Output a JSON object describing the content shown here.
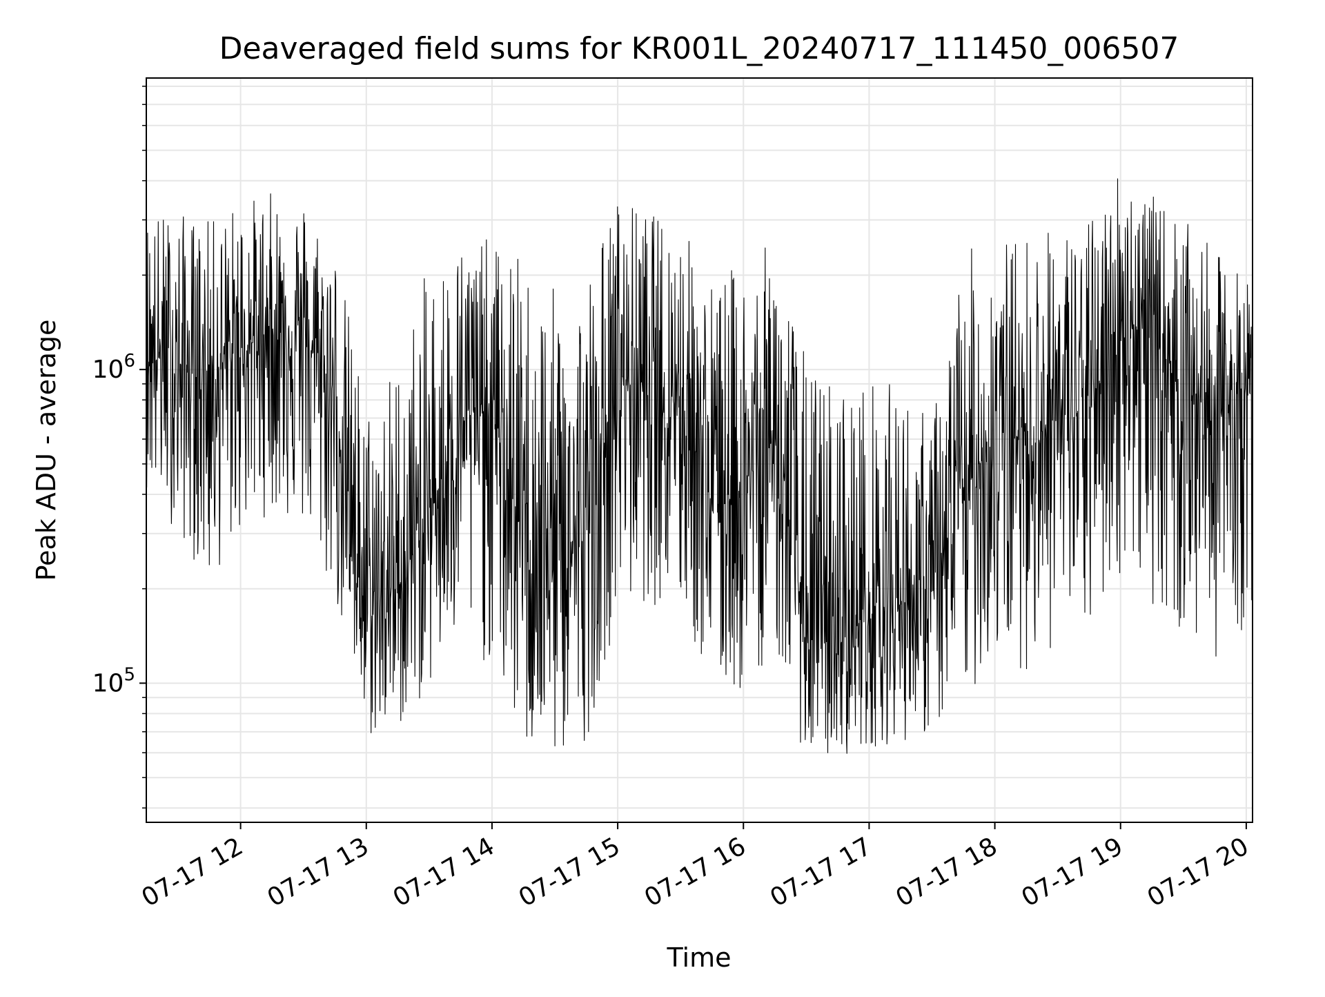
{
  "chart_data": {
    "type": "line",
    "title": "Deaveraged field sums for KR001L_20240717_111450_006507",
    "xlabel": "Time",
    "ylabel": "Peak ADU - average",
    "yscale": "log",
    "ylim": [
      36000,
      8500000
    ],
    "xlim": [
      "2024-07-17T11:15",
      "2024-07-17T20:03"
    ],
    "grid": true,
    "line_color": "#000000",
    "grid_color": "#e6e6e6",
    "x_ticks": [
      {
        "at": "2024-07-17T12:00",
        "label": "07-17 12"
      },
      {
        "at": "2024-07-17T13:00",
        "label": "07-17 13"
      },
      {
        "at": "2024-07-17T14:00",
        "label": "07-17 14"
      },
      {
        "at": "2024-07-17T15:00",
        "label": "07-17 15"
      },
      {
        "at": "2024-07-17T16:00",
        "label": "07-17 16"
      },
      {
        "at": "2024-07-17T17:00",
        "label": "07-17 17"
      },
      {
        "at": "2024-07-17T18:00",
        "label": "07-17 18"
      },
      {
        "at": "2024-07-17T19:00",
        "label": "07-17 19"
      },
      {
        "at": "2024-07-17T20:00",
        "label": "07-17 20"
      }
    ],
    "y_ticks": [
      {
        "value": 100000,
        "base": "10",
        "exp": "5"
      },
      {
        "value": 1000000,
        "base": "10",
        "exp": "6"
      }
    ],
    "series": [
      {
        "x": [
          "2024-07-17T11:15",
          "2024-07-17T11:30",
          "2024-07-17T11:45",
          "2024-07-17T12:00",
          "2024-07-17T12:15",
          "2024-07-17T12:30",
          "2024-07-17T12:45",
          "2024-07-17T13:00",
          "2024-07-17T13:15",
          "2024-07-17T13:30",
          "2024-07-17T13:45",
          "2024-07-17T14:00",
          "2024-07-17T14:15",
          "2024-07-17T14:30",
          "2024-07-17T14:45",
          "2024-07-17T15:00",
          "2024-07-17T15:15",
          "2024-07-17T15:30",
          "2024-07-17T15:45",
          "2024-07-17T16:00",
          "2024-07-17T16:15",
          "2024-07-17T16:30",
          "2024-07-17T16:45",
          "2024-07-17T17:00",
          "2024-07-17T17:15",
          "2024-07-17T17:30",
          "2024-07-17T17:45",
          "2024-07-17T18:00",
          "2024-07-17T18:15",
          "2024-07-17T18:30",
          "2024-07-17T18:45",
          "2024-07-17T19:00",
          "2024-07-17T19:15",
          "2024-07-17T19:30",
          "2024-07-17T19:45",
          "2024-07-17T20:00"
        ],
        "center": [
          1150000,
          1000000,
          950000,
          1150000,
          1350000,
          1300000,
          800000,
          160000,
          200000,
          340000,
          700000,
          750000,
          280000,
          250000,
          290000,
          950000,
          900000,
          850000,
          380000,
          420000,
          620000,
          140000,
          130000,
          170000,
          180000,
          190000,
          400000,
          620000,
          600000,
          700000,
          720000,
          1500000,
          1250000,
          900000,
          700000,
          850000
        ],
        "upper": [
          3300000,
          3200000,
          3000000,
          3500000,
          3700000,
          3600000,
          2600000,
          800000,
          1100000,
          2200000,
          2700000,
          2600000,
          2300000,
          1800000,
          2100000,
          3600000,
          3200000,
          3000000,
          2000000,
          2200000,
          2600000,
          1100000,
          950000,
          950000,
          900000,
          700000,
          2400000,
          2600000,
          2800000,
          2900000,
          3000000,
          4700000,
          3600000,
          3000000,
          2400000,
          2000000
        ],
        "lower": [
          420000,
          300000,
          200000,
          300000,
          350000,
          300000,
          180000,
          65000,
          70000,
          95000,
          130000,
          110000,
          60000,
          55000,
          65000,
          170000,
          180000,
          160000,
          95000,
          90000,
          130000,
          55000,
          58000,
          62000,
          65000,
          68000,
          85000,
          120000,
          110000,
          130000,
          140000,
          220000,
          180000,
          130000,
          120000,
          150000
        ]
      }
    ]
  }
}
